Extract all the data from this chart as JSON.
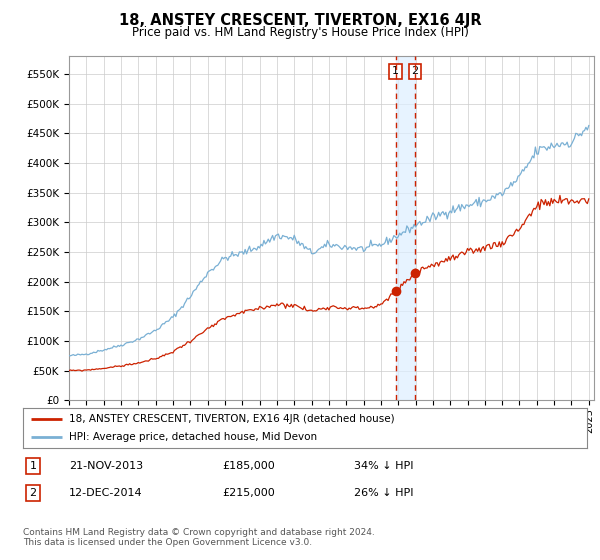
{
  "title": "18, ANSTEY CRESCENT, TIVERTON, EX16 4JR",
  "subtitle": "Price paid vs. HM Land Registry's House Price Index (HPI)",
  "ylabel_ticks": [
    "£0",
    "£50K",
    "£100K",
    "£150K",
    "£200K",
    "£250K",
    "£300K",
    "£350K",
    "£400K",
    "£450K",
    "£500K",
    "£550K"
  ],
  "ytick_values": [
    0,
    50000,
    100000,
    150000,
    200000,
    250000,
    300000,
    350000,
    400000,
    450000,
    500000,
    550000
  ],
  "ylim": [
    0,
    580000
  ],
  "xlim_start": 1995.0,
  "xlim_end": 2025.3,
  "hpi_color": "#7ab0d4",
  "price_color": "#cc2200",
  "transaction1_date": 2013.88,
  "transaction1_price": 185000,
  "transaction2_date": 2014.95,
  "transaction2_price": 215000,
  "vline_color": "#cc2200",
  "marker_color": "#cc2200",
  "legend_label1": "18, ANSTEY CRESCENT, TIVERTON, EX16 4JR (detached house)",
  "legend_label2": "HPI: Average price, detached house, Mid Devon",
  "table_row1_num": "1",
  "table_row1_date": "21-NOV-2013",
  "table_row1_price": "£185,000",
  "table_row1_hpi": "34% ↓ HPI",
  "table_row2_num": "2",
  "table_row2_date": "12-DEC-2014",
  "table_row2_price": "£215,000",
  "table_row2_hpi": "26% ↓ HPI",
  "footnote": "Contains HM Land Registry data © Crown copyright and database right 2024.\nThis data is licensed under the Open Government Licence v3.0.",
  "background_color": "#ffffff",
  "grid_color": "#cccccc",
  "title_fontsize": 10.5,
  "subtitle_fontsize": 8.5,
  "hpi_anchors": {
    "1995.0": 75000,
    "1996.0": 78000,
    "1997.0": 85000,
    "1998.0": 93000,
    "1999.0": 103000,
    "2000.0": 118000,
    "2001.0": 140000,
    "2002.0": 175000,
    "2003.0": 215000,
    "2004.0": 240000,
    "2005.0": 248000,
    "2006.0": 260000,
    "2007.0": 278000,
    "2008.0": 272000,
    "2009.0": 248000,
    "2010.0": 262000,
    "2011.0": 258000,
    "2012.0": 255000,
    "2013.0": 262000,
    "2014.0": 278000,
    "2015.0": 295000,
    "2016.0": 308000,
    "2017.0": 320000,
    "2018.0": 328000,
    "2019.0": 336000,
    "2020.0": 348000,
    "2021.0": 375000,
    "2022.0": 420000,
    "2023.0": 430000,
    "2024.0": 435000,
    "2024.9": 460000
  },
  "prop_anchors": {
    "1995.0": 50000,
    "1996.0": 51000,
    "1997.0": 54000,
    "1998.0": 58000,
    "1999.0": 63000,
    "2000.0": 70000,
    "2001.0": 82000,
    "2002.0": 100000,
    "2003.0": 120000,
    "2004.0": 138000,
    "2005.0": 148000,
    "2006.0": 155000,
    "2007.0": 162000,
    "2008.0": 160000,
    "2009.0": 150000,
    "2010.0": 158000,
    "2011.0": 156000,
    "2012.0": 155000,
    "2013.0": 160000,
    "2013.88": 185000,
    "2014.0": 187000,
    "2014.95": 215000,
    "2015.0": 217000,
    "2016.0": 228000,
    "2017.0": 238000,
    "2018.0": 248000,
    "2019.0": 258000,
    "2020.0": 265000,
    "2021.0": 290000,
    "2022.0": 328000,
    "2023.0": 335000,
    "2024.0": 335000,
    "2024.9": 338000
  }
}
